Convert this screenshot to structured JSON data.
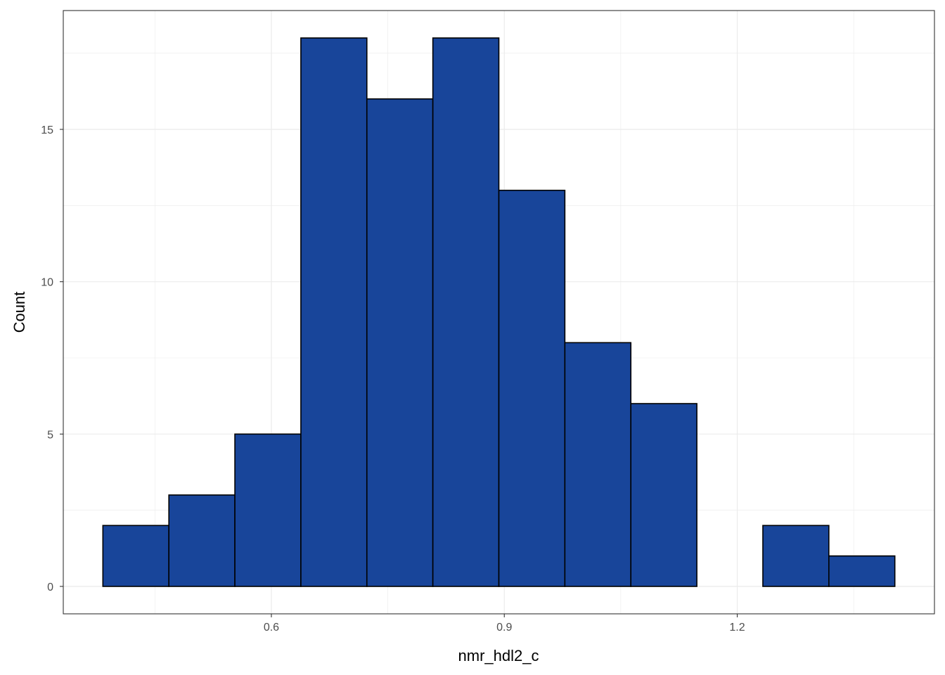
{
  "chart_data": {
    "type": "bar",
    "subtype": "histogram",
    "xlabel": "nmr_hdl2_c",
    "ylabel": "Count",
    "bins": [
      {
        "x0": 0.383,
        "x1": 0.468,
        "count": 2
      },
      {
        "x0": 0.468,
        "x1": 0.553,
        "count": 3
      },
      {
        "x0": 0.553,
        "x1": 0.638,
        "count": 5
      },
      {
        "x0": 0.638,
        "x1": 0.723,
        "count": 18
      },
      {
        "x0": 0.723,
        "x1": 0.808,
        "count": 16
      },
      {
        "x0": 0.808,
        "x1": 0.893,
        "count": 18
      },
      {
        "x0": 0.893,
        "x1": 0.978,
        "count": 13
      },
      {
        "x0": 0.978,
        "x1": 1.063,
        "count": 8
      },
      {
        "x0": 1.063,
        "x1": 1.148,
        "count": 6
      },
      {
        "x0": 1.148,
        "x1": 1.233,
        "count": 0
      },
      {
        "x0": 1.233,
        "x1": 1.318,
        "count": 2
      },
      {
        "x0": 1.318,
        "x1": 1.403,
        "count": 1
      }
    ],
    "xlim": [
      0.332,
      1.454
    ],
    "ylim": [
      -0.9,
      18.9
    ],
    "x_ticks": [
      0.6,
      0.9,
      1.2
    ],
    "x_tick_labels": [
      "0.6",
      "0.9",
      "1.2"
    ],
    "x_minor": [
      0.45,
      0.75,
      1.05,
      1.35
    ],
    "y_ticks": [
      0,
      5,
      10,
      15
    ],
    "y_tick_labels": [
      "0",
      "5",
      "10",
      "15"
    ],
    "y_minor": [
      2.5,
      7.5,
      12.5,
      17.5
    ],
    "grid": true,
    "bar_fill": "#18459a",
    "bar_stroke": "#000000",
    "grid_color": "#ebebeb",
    "panel_border": "#333333"
  }
}
